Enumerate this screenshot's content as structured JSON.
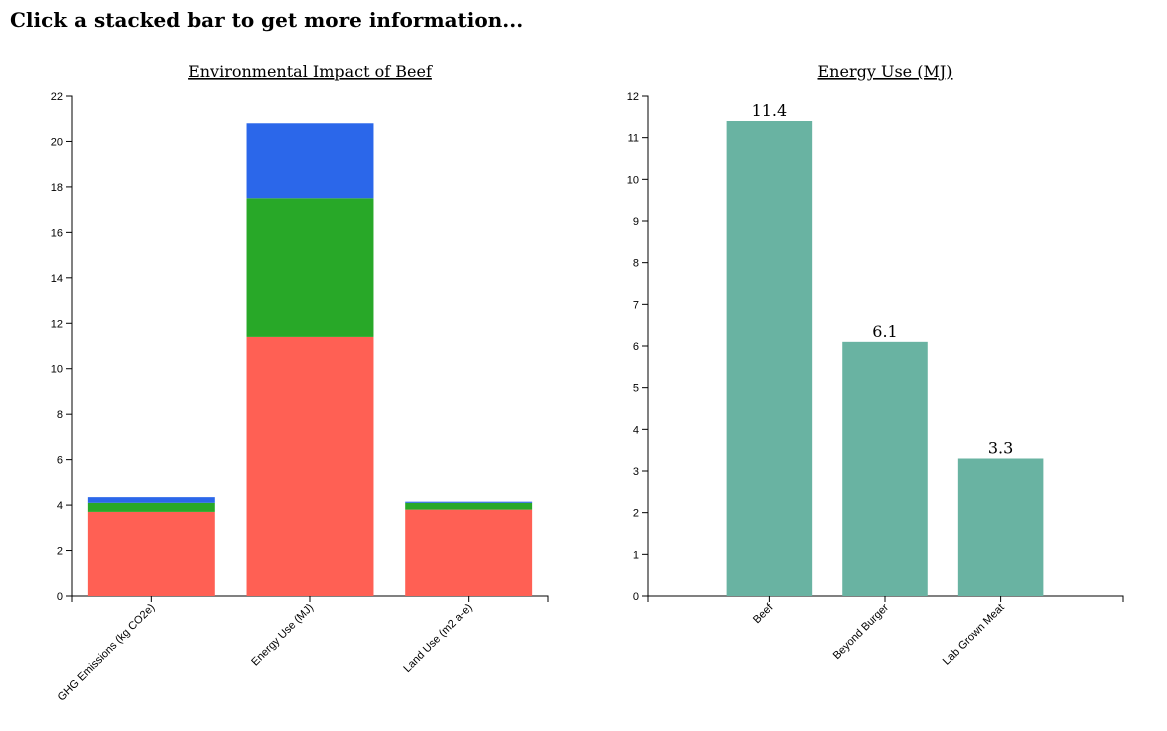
{
  "heading": "Click a stacked bar to get more information...",
  "chart_data": [
    {
      "type": "bar",
      "stacked": true,
      "title": "Environmental Impact of Beef",
      "categories": [
        "GHG Emissions (kg CO2e)",
        "Energy Use (MJ)",
        "Land Use (m2 a-e)"
      ],
      "series": [
        {
          "values": [
            3.7,
            11.4,
            3.8
          ],
          "color": "#ff6054"
        },
        {
          "values": [
            0.4,
            6.1,
            0.3
          ],
          "color": "#28a828"
        },
        {
          "values": [
            0.25,
            3.3,
            0.05
          ],
          "color": "#2b67ea"
        }
      ],
      "ylim": [
        0,
        22
      ],
      "yticks": [
        0,
        2,
        4,
        6,
        8,
        10,
        12,
        14,
        16,
        18,
        20,
        22
      ],
      "grid": false
    },
    {
      "type": "bar",
      "title": "Energy Use (MJ)",
      "categories": [
        "Beef",
        "Beyond Burger",
        "Lab Grown Meat"
      ],
      "values": [
        11.4,
        6.1,
        3.3
      ],
      "value_labels": [
        "11.4",
        "6.1",
        "3.3"
      ],
      "color": "#69b3a2",
      "ylim": [
        0,
        12
      ],
      "yticks": [
        0,
        1,
        2,
        3,
        4,
        5,
        6,
        7,
        8,
        9,
        10,
        11,
        12
      ],
      "grid": false
    }
  ]
}
